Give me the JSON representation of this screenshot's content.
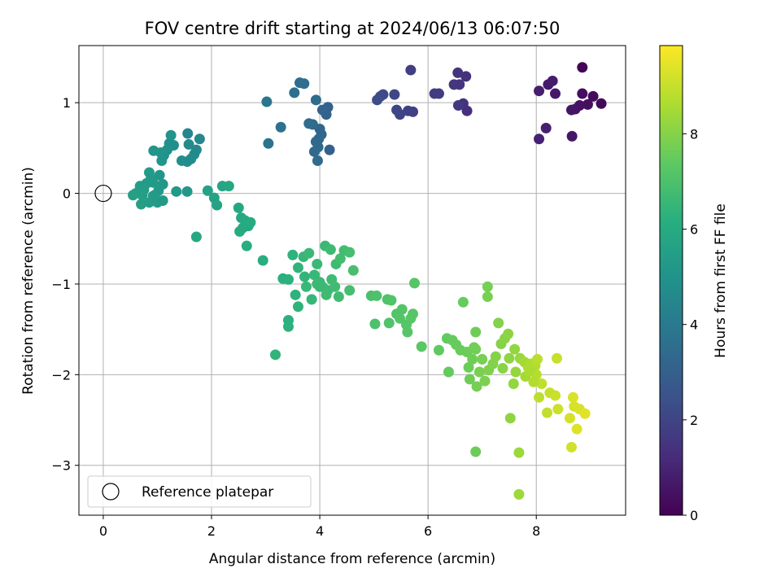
{
  "chart_data": {
    "type": "scatter",
    "title": "FOV centre drift starting at 2024/06/13 06:07:50",
    "xlabel": "Angular distance from reference (arcmin)",
    "ylabel": "Rotation from reference (arcmin)",
    "xlim": [
      -0.45,
      9.65
    ],
    "ylim": [
      -3.55,
      1.63
    ],
    "xticks": [
      0,
      2,
      4,
      6,
      8
    ],
    "yticks": [
      -3,
      -2,
      -1,
      0,
      1
    ],
    "xtick_labels": [
      "0",
      "2",
      "4",
      "6",
      "8"
    ],
    "ytick_labels": [
      "−3",
      "−2",
      "−1",
      "0",
      "1"
    ],
    "grid": true,
    "colormap": "viridis",
    "colorbar": {
      "label": "Hours from first FF file",
      "range": [
        0,
        9.85
      ],
      "ticks": [
        0,
        2,
        4,
        6,
        8
      ],
      "tick_labels": [
        "0",
        "2",
        "4",
        "6",
        "8"
      ]
    },
    "legend": {
      "placement": "lower-left",
      "entries": [
        "Reference platepar"
      ]
    },
    "reference_point": {
      "x": 0,
      "y": 0,
      "name": "Reference platepar"
    },
    "columns": [
      "x",
      "y",
      "hours"
    ],
    "points": [
      [
        9.2,
        0.99,
        0.2
      ],
      [
        9.05,
        1.07,
        0.3
      ],
      [
        8.95,
        0.98,
        0.35
      ],
      [
        8.85,
        1.1,
        0.4
      ],
      [
        8.8,
        0.97,
        0.45
      ],
      [
        8.72,
        0.93,
        0.5
      ],
      [
        8.65,
        0.92,
        0.55
      ],
      [
        8.66,
        0.63,
        0.6
      ],
      [
        8.85,
        1.39,
        0.1
      ],
      [
        8.35,
        1.1,
        0.65
      ],
      [
        8.22,
        1.2,
        0.7
      ],
      [
        8.3,
        1.24,
        0.75
      ],
      [
        8.05,
        1.13,
        0.8
      ],
      [
        8.18,
        0.72,
        0.85
      ],
      [
        8.05,
        0.6,
        0.9
      ],
      [
        6.72,
        0.91,
        1.3
      ],
      [
        6.7,
        1.29,
        1.35
      ],
      [
        6.65,
        0.99,
        1.4
      ],
      [
        6.58,
        1.2,
        1.45
      ],
      [
        6.55,
        1.33,
        1.5
      ],
      [
        6.48,
        1.2,
        1.55
      ],
      [
        6.56,
        0.97,
        1.6
      ],
      [
        6.2,
        1.1,
        1.7
      ],
      [
        6.12,
        1.1,
        1.75
      ],
      [
        5.68,
        1.36,
        1.8
      ],
      [
        5.72,
        0.9,
        1.85
      ],
      [
        5.63,
        0.91,
        1.9
      ],
      [
        5.48,
        0.87,
        2.0
      ],
      [
        5.42,
        0.92,
        2.05
      ],
      [
        5.38,
        1.09,
        2.1
      ],
      [
        5.17,
        1.09,
        2.2
      ],
      [
        5.12,
        1.07,
        2.25
      ],
      [
        5.06,
        1.03,
        2.3
      ],
      [
        4.18,
        0.48,
        3.0
      ],
      [
        4.15,
        0.95,
        3.05
      ],
      [
        4.12,
        0.87,
        3.1
      ],
      [
        4.05,
        0.92,
        3.15
      ],
      [
        4.0,
        0.71,
        3.2
      ],
      [
        4.03,
        0.65,
        3.25
      ],
      [
        3.98,
        0.6,
        3.3
      ],
      [
        3.97,
        0.51,
        3.3
      ],
      [
        3.93,
        0.57,
        3.35
      ],
      [
        3.9,
        0.46,
        3.35
      ],
      [
        3.96,
        0.36,
        3.4
      ],
      [
        3.93,
        1.03,
        3.45
      ],
      [
        3.87,
        0.76,
        3.4
      ],
      [
        3.8,
        0.77,
        3.45
      ],
      [
        3.63,
        1.22,
        3.5
      ],
      [
        3.71,
        1.21,
        3.55
      ],
      [
        3.53,
        1.11,
        3.6
      ],
      [
        3.28,
        0.73,
        3.7
      ],
      [
        3.05,
        0.55,
        3.75
      ],
      [
        3.02,
        1.01,
        3.8
      ],
      [
        1.56,
        0.66,
        4.5
      ],
      [
        1.78,
        0.6,
        4.55
      ],
      [
        1.72,
        0.48,
        4.6
      ],
      [
        1.68,
        0.43,
        4.65
      ],
      [
        1.58,
        0.54,
        4.7
      ],
      [
        1.55,
        0.35,
        4.75
      ],
      [
        1.45,
        0.36,
        4.8
      ],
      [
        1.3,
        0.53,
        4.85
      ],
      [
        1.22,
        0.55,
        4.9
      ],
      [
        1.18,
        0.48,
        4.95
      ],
      [
        1.12,
        0.42,
        5.0
      ],
      [
        1.06,
        0.45,
        5.05
      ],
      [
        0.93,
        0.47,
        5.1
      ],
      [
        1.25,
        0.64,
        5.05
      ],
      [
        1.08,
        0.36,
        5.1
      ],
      [
        1.04,
        0.2,
        5.15
      ],
      [
        1.1,
        0.1,
        5.2
      ],
      [
        1.02,
        0.03,
        5.25
      ],
      [
        0.92,
        0.12,
        5.3
      ],
      [
        0.85,
        0.23,
        5.35
      ],
      [
        0.88,
        0.16,
        5.3
      ],
      [
        0.8,
        0.11,
        5.35
      ],
      [
        0.75,
        0.04,
        5.4
      ],
      [
        0.68,
        0.08,
        5.45
      ],
      [
        0.72,
        -0.02,
        5.5
      ],
      [
        0.6,
        0.0,
        5.5
      ],
      [
        0.55,
        -0.02,
        5.55
      ],
      [
        0.7,
        -0.12,
        5.5
      ],
      [
        0.85,
        -0.1,
        5.45
      ],
      [
        0.92,
        -0.03,
        5.4
      ],
      [
        1.0,
        -0.1,
        5.35
      ],
      [
        1.1,
        -0.08,
        5.3
      ],
      [
        0.95,
        -0.02,
        5.35
      ],
      [
        1.35,
        0.02,
        5.25
      ],
      [
        1.55,
        0.02,
        5.2
      ],
      [
        1.62,
        0.38,
        4.7
      ],
      [
        1.93,
        0.03,
        5.6
      ],
      [
        2.05,
        -0.05,
        5.65
      ],
      [
        2.1,
        -0.13,
        5.7
      ],
      [
        2.2,
        0.08,
        5.75
      ],
      [
        2.32,
        0.08,
        5.8
      ],
      [
        2.5,
        -0.16,
        5.85
      ],
      [
        2.55,
        -0.27,
        5.9
      ],
      [
        2.62,
        -0.3,
        5.95
      ],
      [
        2.68,
        -0.36,
        6.0
      ],
      [
        2.72,
        -0.32,
        6.05
      ],
      [
        2.52,
        -0.42,
        6.05
      ],
      [
        2.58,
        -0.38,
        6.0
      ],
      [
        2.65,
        -0.58,
        6.1
      ],
      [
        1.72,
        -0.48,
        5.9
      ],
      [
        2.95,
        -0.74,
        6.15
      ],
      [
        3.18,
        -1.78,
        6.4
      ],
      [
        3.32,
        -0.94,
        6.2
      ],
      [
        3.42,
        -1.4,
        6.25
      ],
      [
        3.42,
        -1.47,
        6.3
      ],
      [
        3.42,
        -0.95,
        6.25
      ],
      [
        3.5,
        -0.68,
        6.35
      ],
      [
        3.55,
        -1.12,
        6.3
      ],
      [
        3.6,
        -1.25,
        6.35
      ],
      [
        3.6,
        -0.82,
        6.4
      ],
      [
        3.72,
        -0.92,
        6.45
      ],
      [
        3.7,
        -0.7,
        6.5
      ],
      [
        3.75,
        -1.03,
        6.55
      ],
      [
        3.8,
        -0.66,
        6.6
      ],
      [
        3.85,
        -1.17,
        6.5
      ],
      [
        3.9,
        -0.9,
        6.55
      ],
      [
        3.95,
        -0.78,
        6.6
      ],
      [
        4.0,
        -0.98,
        6.6
      ],
      [
        4.05,
        -1.03,
        6.65
      ],
      [
        4.1,
        -0.58,
        6.6
      ],
      [
        4.15,
        -1.07,
        6.65
      ],
      [
        4.2,
        -0.62,
        6.7
      ],
      [
        4.22,
        -0.95,
        6.7
      ],
      [
        4.28,
        -1.03,
        6.75
      ],
      [
        4.3,
        -0.78,
        6.7
      ],
      [
        4.35,
        -1.14,
        6.75
      ],
      [
        4.38,
        -0.72,
        6.8
      ],
      [
        4.45,
        -0.63,
        6.8
      ],
      [
        4.55,
        -0.65,
        6.85
      ],
      [
        4.55,
        -1.07,
        6.85
      ],
      [
        4.62,
        -0.85,
        6.9
      ],
      [
        4.12,
        -1.12,
        6.7
      ],
      [
        3.95,
        -1.0,
        6.65
      ],
      [
        4.0,
        -1.03,
        6.6
      ],
      [
        4.95,
        -1.13,
        6.95
      ],
      [
        5.02,
        -1.44,
        7.0
      ],
      [
        5.05,
        -1.13,
        7.0
      ],
      [
        5.25,
        -1.17,
        7.05
      ],
      [
        5.28,
        -1.43,
        7.05
      ],
      [
        5.32,
        -1.18,
        7.1
      ],
      [
        5.42,
        -1.33,
        7.1
      ],
      [
        5.48,
        -1.38,
        7.15
      ],
      [
        5.52,
        -1.28,
        7.15
      ],
      [
        5.6,
        -1.45,
        7.2
      ],
      [
        5.62,
        -1.53,
        7.2
      ],
      [
        5.68,
        -1.38,
        7.25
      ],
      [
        5.72,
        -1.33,
        7.25
      ],
      [
        5.75,
        -0.99,
        7.2
      ],
      [
        5.88,
        -1.69,
        7.3
      ],
      [
        6.2,
        -1.73,
        7.4
      ],
      [
        6.35,
        -1.6,
        7.45
      ],
      [
        6.38,
        -1.97,
        7.45
      ],
      [
        6.45,
        -1.62,
        7.5
      ],
      [
        6.52,
        -1.67,
        7.5
      ],
      [
        6.6,
        -1.73,
        7.55
      ],
      [
        6.65,
        -1.2,
        7.5
      ],
      [
        6.72,
        -1.75,
        7.6
      ],
      [
        6.75,
        -1.92,
        7.6
      ],
      [
        6.77,
        -2.05,
        7.65
      ],
      [
        6.82,
        -1.83,
        7.65
      ],
      [
        6.85,
        -1.7,
        7.7
      ],
      [
        6.88,
        -1.53,
        7.65
      ],
      [
        6.88,
        -1.72,
        7.7
      ],
      [
        6.9,
        -2.13,
        7.75
      ],
      [
        6.88,
        -2.85,
        7.6
      ],
      [
        6.95,
        -1.97,
        7.8
      ],
      [
        7.0,
        -1.83,
        7.8
      ],
      [
        7.05,
        -2.07,
        7.85
      ],
      [
        7.1,
        -1.03,
        7.75
      ],
      [
        7.1,
        -1.14,
        7.8
      ],
      [
        7.12,
        -1.95,
        7.9
      ],
      [
        7.2,
        -1.88,
        7.95
      ],
      [
        7.25,
        -1.8,
        8.0
      ],
      [
        7.3,
        -1.43,
        7.95
      ],
      [
        7.35,
        -1.66,
        8.0
      ],
      [
        7.38,
        -1.93,
        8.05
      ],
      [
        7.42,
        -1.6,
        8.05
      ],
      [
        7.48,
        -1.55,
        8.1
      ],
      [
        7.5,
        -1.82,
        8.15
      ],
      [
        7.52,
        -2.48,
        8.15
      ],
      [
        7.58,
        -2.1,
        8.2
      ],
      [
        7.6,
        -1.72,
        8.2
      ],
      [
        7.62,
        -1.97,
        8.25
      ],
      [
        7.7,
        -1.82,
        8.3
      ],
      [
        7.68,
        -2.86,
        8.35
      ],
      [
        7.68,
        -3.32,
        8.4
      ],
      [
        7.78,
        -1.86,
        8.45
      ],
      [
        7.8,
        -2.02,
        8.5
      ],
      [
        7.85,
        -1.92,
        8.55
      ],
      [
        7.9,
        -1.88,
        8.6
      ],
      [
        7.95,
        -1.95,
        8.65
      ],
      [
        7.98,
        -1.9,
        8.7
      ],
      [
        8.0,
        -2.0,
        8.75
      ],
      [
        8.02,
        -1.83,
        8.8
      ],
      [
        8.05,
        -2.25,
        8.85
      ],
      [
        8.1,
        -2.1,
        8.9
      ],
      [
        8.2,
        -2.42,
        8.95
      ],
      [
        8.25,
        -2.2,
        9.0
      ],
      [
        8.35,
        -2.23,
        9.05
      ],
      [
        8.38,
        -1.82,
        9.0
      ],
      [
        8.4,
        -2.38,
        9.1
      ],
      [
        8.65,
        -2.8,
        9.15
      ],
      [
        8.62,
        -2.48,
        9.2
      ],
      [
        8.7,
        -2.35,
        9.25
      ],
      [
        8.8,
        -2.38,
        9.3
      ],
      [
        8.75,
        -2.6,
        9.35
      ],
      [
        8.9,
        -2.43,
        9.4
      ],
      [
        8.68,
        -2.25,
        9.3
      ],
      [
        7.95,
        -2.08,
        8.7
      ],
      [
        7.88,
        -1.96,
        8.6
      ]
    ]
  }
}
